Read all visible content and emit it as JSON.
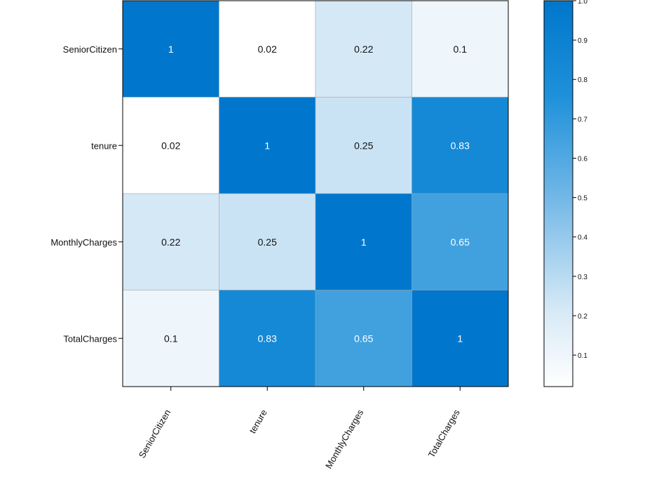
{
  "chart_data": {
    "type": "heatmap",
    "title": "",
    "xlabel": "",
    "ylabel": "",
    "rows": [
      "SeniorCitizen",
      "tenure",
      "MonthlyCharges",
      "TotalCharges"
    ],
    "columns": [
      "SeniorCitizen",
      "tenure",
      "MonthlyCharges",
      "TotalCharges"
    ],
    "values": [
      [
        1,
        0.02,
        0.22,
        0.1
      ],
      [
        0.02,
        1,
        0.25,
        0.83
      ],
      [
        0.22,
        0.25,
        1,
        0.65
      ],
      [
        0.1,
        0.83,
        0.65,
        1
      ]
    ],
    "colorbar": {
      "ticks": [
        "0.1",
        "0.2",
        "0.3",
        "0.4",
        "0.5",
        "0.6",
        "0.7",
        "0.8",
        "0.9",
        "1.0"
      ],
      "range": [
        0.02,
        1.0
      ]
    },
    "colors": {
      "low": "#ffffff",
      "high": "#0077cc",
      "text_dark": "#111111",
      "text_light": "#ffffff"
    },
    "x_tick_rotation": "60 degrees"
  }
}
